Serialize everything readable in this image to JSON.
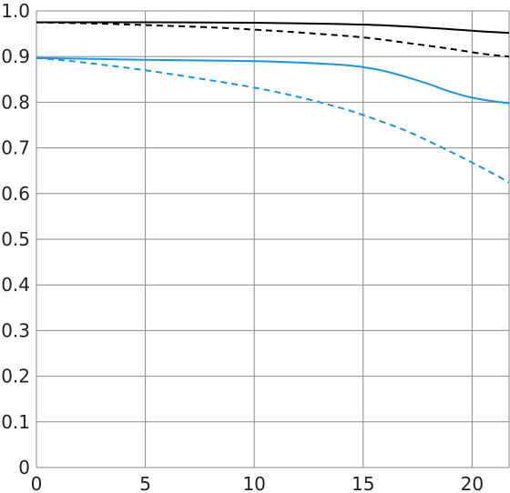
{
  "chart_data": {
    "type": "line",
    "xlim": [
      0,
      21.7
    ],
    "ylim": [
      0,
      1.0
    ],
    "x_ticks": [
      0,
      5,
      10,
      15,
      20
    ],
    "x_tick_labels": [
      "0",
      "5",
      "10",
      "15",
      "20"
    ],
    "y_ticks": [
      0,
      0.1,
      0.2,
      0.3,
      0.4,
      0.5,
      0.6,
      0.7,
      0.8,
      0.9,
      1.0
    ],
    "y_tick_labels": [
      "0",
      "0.1",
      "0.2",
      "0.3",
      "0.4",
      "0.5",
      "0.6",
      "0.7",
      "0.8",
      "0.9",
      "1.0"
    ],
    "grid": true,
    "legend": "none",
    "series": [
      {
        "color": "#000000",
        "dash": "solid",
        "x": [
          0,
          5,
          10,
          13,
          15,
          17,
          19,
          20.5,
          21.7
        ],
        "y": [
          0.975,
          0.975,
          0.974,
          0.972,
          0.97,
          0.966,
          0.96,
          0.955,
          0.952
        ]
      },
      {
        "color": "#000000",
        "dash": "dashed",
        "x": [
          0,
          3,
          5,
          8,
          10,
          12,
          15,
          17,
          19,
          20.5,
          21.7
        ],
        "y": [
          0.975,
          0.972,
          0.969,
          0.964,
          0.959,
          0.953,
          0.942,
          0.93,
          0.917,
          0.906,
          0.9
        ]
      },
      {
        "color": "#1a96e0",
        "dash": "solid",
        "x": [
          0,
          5,
          10,
          12.5,
          14,
          15,
          16,
          17,
          18,
          19,
          20,
          21,
          21.7
        ],
        "y": [
          0.897,
          0.893,
          0.89,
          0.886,
          0.882,
          0.877,
          0.868,
          0.855,
          0.84,
          0.823,
          0.81,
          0.802,
          0.798
        ]
      },
      {
        "color": "#1a96e0",
        "dash": "dashed",
        "x": [
          0,
          2,
          5,
          8,
          10,
          12,
          14,
          15,
          16,
          17,
          18,
          19,
          20,
          21,
          21.7
        ],
        "y": [
          0.897,
          0.888,
          0.87,
          0.848,
          0.832,
          0.812,
          0.787,
          0.772,
          0.755,
          0.737,
          0.715,
          0.692,
          0.668,
          0.643,
          0.624
        ]
      }
    ]
  }
}
